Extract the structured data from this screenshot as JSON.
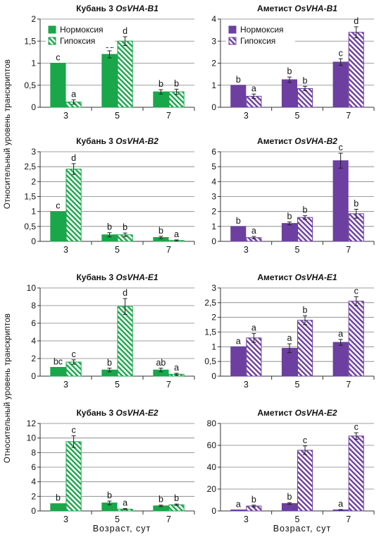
{
  "y_axis_label": "Относительный уровень транскриптов",
  "x_axis_label": "Возраст, сут",
  "legend": {
    "normoxia": "Нормоксия",
    "hypoxia": "Гипоксия"
  },
  "colors": {
    "green": "#1aa64a",
    "purple": "#6c3fa0"
  },
  "chart_data": [
    {
      "type": "bar",
      "title": "Кубань 3 OsVHA-B1",
      "title_plain": "Кубань 3 ",
      "title_italic": "OsVHA-B1",
      "categories": [
        "3",
        "5",
        "7"
      ],
      "color": "green",
      "ylim": [
        0,
        2
      ],
      "yticks": [
        "0",
        "0,5",
        "1",
        "1,5",
        "2"
      ],
      "show_legend": true,
      "series": [
        {
          "name": "Нормоксия",
          "values": [
            1.0,
            1.2,
            0.35
          ],
          "errors": [
            0,
            0.08,
            0.05
          ],
          "labels": [
            "c",
            "cd",
            "b"
          ]
        },
        {
          "name": "Гипоксия",
          "values": [
            0.12,
            1.5,
            0.35
          ],
          "errors": [
            0.05,
            0.1,
            0.06
          ],
          "labels": [
            "a",
            "d",
            "b"
          ]
        }
      ]
    },
    {
      "type": "bar",
      "title": "Аметист OsVHA-B1",
      "title_plain": "Аметист ",
      "title_italic": "OsVHA-B1",
      "categories": [
        "3",
        "5",
        "7"
      ],
      "color": "purple",
      "ylim": [
        0,
        4
      ],
      "yticks": [
        "0",
        "1",
        "2",
        "3",
        "4"
      ],
      "show_legend": true,
      "series": [
        {
          "name": "Нормоксия",
          "values": [
            1.0,
            1.25,
            2.05
          ],
          "errors": [
            0,
            0.12,
            0.15
          ],
          "labels": [
            "b",
            "b",
            "c"
          ]
        },
        {
          "name": "Гипоксия",
          "values": [
            0.5,
            0.85,
            3.4
          ],
          "errors": [
            0.1,
            0.1,
            0.25
          ],
          "labels": [
            "a",
            "b",
            "d"
          ]
        }
      ]
    },
    {
      "type": "bar",
      "title": "Кубань 3 OsVHA-B2",
      "title_plain": "Кубань 3 ",
      "title_italic": "OsVHA-B2",
      "categories": [
        "3",
        "5",
        "7"
      ],
      "color": "green",
      "ylim": [
        0,
        3
      ],
      "yticks": [
        "0",
        "0,5",
        "1",
        "1,5",
        "2",
        "2,5",
        "3"
      ],
      "show_legend": false,
      "series": [
        {
          "name": "Нормоксия",
          "values": [
            1.0,
            0.22,
            0.13
          ],
          "errors": [
            0,
            0.07,
            0.04
          ],
          "labels": [
            "c",
            "b",
            "b"
          ]
        },
        {
          "name": "Гипоксия",
          "values": [
            2.42,
            0.22,
            0.03
          ],
          "errors": [
            0.18,
            0.06,
            0.02
          ],
          "labels": [
            "d",
            "b",
            "a"
          ]
        }
      ]
    },
    {
      "type": "bar",
      "title": "Аметист OsVHA-B2",
      "title_plain": "Аметист ",
      "title_italic": "OsVHA-B2",
      "categories": [
        "3",
        "5",
        "7"
      ],
      "color": "purple",
      "ylim": [
        0,
        6
      ],
      "yticks": [
        "0",
        "1",
        "2",
        "3",
        "4",
        "5",
        "6"
      ],
      "show_legend": false,
      "series": [
        {
          "name": "Нормоксия",
          "values": [
            1.0,
            1.2,
            5.4
          ],
          "errors": [
            0,
            0.1,
            0.5
          ],
          "labels": [
            "b",
            "b",
            "c"
          ]
        },
        {
          "name": "Гипоксия",
          "values": [
            0.25,
            1.6,
            1.85
          ],
          "errors": [
            0.08,
            0.12,
            0.3
          ],
          "labels": [
            "a",
            "b",
            "b"
          ]
        }
      ]
    },
    {
      "type": "bar",
      "title": "Кубань 3 OsVHA-E1",
      "title_plain": "Кубань 3 ",
      "title_italic": "OsVHA-E1",
      "categories": [
        "3",
        "5",
        "7"
      ],
      "color": "green",
      "ylim": [
        0,
        10
      ],
      "yticks": [
        "0",
        "2",
        "4",
        "6",
        "8",
        "10"
      ],
      "show_legend": false,
      "series": [
        {
          "name": "Нормоксия",
          "values": [
            1.0,
            0.7,
            0.7
          ],
          "errors": [
            0,
            0.2,
            0.2
          ],
          "labels": [
            "bc",
            "b",
            "ab"
          ]
        },
        {
          "name": "Гипоксия",
          "values": [
            1.6,
            7.9,
            0.22
          ],
          "errors": [
            0.25,
            0.9,
            0.1
          ],
          "labels": [
            "c",
            "d",
            "a"
          ]
        }
      ]
    },
    {
      "type": "bar",
      "title": "Аметист OsVHA-E1",
      "title_plain": "Аметист ",
      "title_italic": "OsVHA-E1",
      "categories": [
        "3",
        "5",
        "7"
      ],
      "color": "purple",
      "ylim": [
        0,
        3
      ],
      "yticks": [
        "0",
        "0,5",
        "1",
        "1,5",
        "2",
        "2,5",
        "3"
      ],
      "show_legend": false,
      "series": [
        {
          "name": "Нормоксия",
          "values": [
            1.0,
            0.95,
            1.15
          ],
          "errors": [
            0,
            0.15,
            0.1
          ],
          "labels": [
            "a",
            "a",
            "a"
          ]
        },
        {
          "name": "Гипоксия",
          "values": [
            1.3,
            1.9,
            2.55
          ],
          "errors": [
            0.15,
            0.15,
            0.15
          ],
          "labels": [
            "a",
            "b",
            "c"
          ]
        }
      ]
    },
    {
      "type": "bar",
      "title": "Кубань 3 OsVHA-E2",
      "title_plain": "Кубань 3 ",
      "title_italic": "OsVHA-E2",
      "categories": [
        "3",
        "5",
        "7"
      ],
      "color": "green",
      "ylim": [
        0,
        12
      ],
      "yticks": [
        "0",
        "2",
        "4",
        "6",
        "8",
        "10",
        "12"
      ],
      "show_legend": false,
      "series": [
        {
          "name": "Нормоксия",
          "values": [
            1.0,
            1.1,
            0.7
          ],
          "errors": [
            0,
            0.25,
            0.1
          ],
          "labels": [
            "b",
            "b",
            "b"
          ]
        },
        {
          "name": "Гипоксия",
          "values": [
            9.5,
            0.25,
            0.85
          ],
          "errors": [
            0.8,
            0.08,
            0.1
          ],
          "labels": [
            "c",
            "a",
            "b"
          ]
        }
      ]
    },
    {
      "type": "bar",
      "title": "Аметист OsVHA-E2",
      "title_plain": "Аметист ",
      "title_italic": "OsVHA-E2",
      "categories": [
        "3",
        "5",
        "7"
      ],
      "color": "purple",
      "ylim": [
        0,
        80
      ],
      "yticks": [
        "0",
        "20",
        "40",
        "60",
        "80"
      ],
      "show_legend": false,
      "series": [
        {
          "name": "Нормоксия",
          "values": [
            1.0,
            6.8,
            1.0
          ],
          "errors": [
            0,
            0.8,
            0.3
          ],
          "labels": [
            "a",
            "b",
            "a"
          ]
        },
        {
          "name": "Гипоксия",
          "values": [
            4.5,
            55.5,
            68.5
          ],
          "errors": [
            0.8,
            4.0,
            3.0
          ],
          "labels": [
            "b",
            "c",
            "c"
          ]
        }
      ]
    }
  ]
}
